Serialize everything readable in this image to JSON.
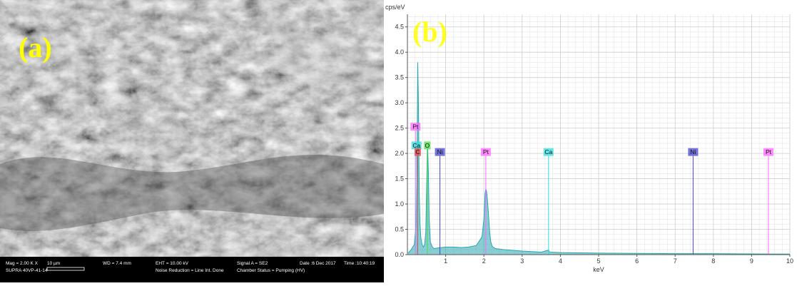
{
  "panel_a": {
    "label": "(a)",
    "info_bar": {
      "row1": [
        "Mag = 2.00 K X",
        "10 µm",
        "WD = 7.4 mm",
        "EHT = 10.00 kV",
        "Signal A = SE2",
        "Date :6 Dec 2017",
        "Time :10:40:19"
      ],
      "row2": [
        "SUPRA 40VP-41-14",
        "Noise Reduction = Line Int. Done",
        "Chamber Status = Pumping (HV)"
      ]
    }
  },
  "chart_data": {
    "type": "line",
    "panel_label": "(b)",
    "ylabel": "cps/eV",
    "xlabel": "keV",
    "xlim": [
      0,
      10
    ],
    "ylim": [
      0,
      4.75
    ],
    "xticks": [
      1,
      2,
      3,
      4,
      5,
      6,
      7,
      8,
      9,
      10
    ],
    "yticks": [
      0.0,
      0.5,
      1.0,
      1.5,
      2.0,
      2.5,
      3.0,
      3.5,
      4.0,
      4.5
    ],
    "grid": true,
    "series": [
      {
        "x": [
          0.02,
          0.1,
          0.18,
          0.22,
          0.25,
          0.27,
          0.29,
          0.31,
          0.33,
          0.35,
          0.38,
          0.42,
          0.45,
          0.48,
          0.5,
          0.52,
          0.53,
          0.55,
          0.57,
          0.6,
          0.65,
          0.7,
          0.78,
          0.85,
          0.9,
          1.0,
          1.2,
          1.4,
          1.6,
          1.8,
          1.95,
          2.0,
          2.03,
          2.05,
          2.07,
          2.09,
          2.12,
          2.15,
          2.18,
          2.22,
          2.3,
          2.5,
          3.0,
          3.5,
          3.69,
          3.72,
          4.0,
          5.0,
          6.0,
          7.0,
          8.0,
          9.0,
          10.0
        ],
        "y": [
          0.03,
          0.1,
          0.2,
          0.55,
          1.7,
          3.8,
          2.9,
          1.2,
          0.6,
          0.35,
          0.2,
          0.15,
          0.2,
          0.45,
          1.2,
          2.0,
          2.1,
          1.6,
          0.7,
          0.25,
          0.15,
          0.12,
          0.13,
          0.14,
          0.14,
          0.15,
          0.15,
          0.14,
          0.15,
          0.18,
          0.35,
          0.7,
          1.2,
          1.3,
          1.25,
          1.1,
          0.8,
          0.45,
          0.25,
          0.16,
          0.12,
          0.1,
          0.07,
          0.05,
          0.09,
          0.05,
          0.04,
          0.03,
          0.025,
          0.02,
          0.02,
          0.015,
          0.01
        ],
        "color": "#2aa6b0"
      }
    ],
    "element_markers": [
      {
        "element": "Pt",
        "energy": 0.21,
        "height": 2.45,
        "color": "#ff66ff"
      },
      {
        "element": "Ca",
        "energy": 0.24,
        "height": 2.08,
        "color": "#33dddd"
      },
      {
        "element": "C",
        "energy": 0.27,
        "height": 1.95,
        "color": "#ee4444"
      },
      {
        "element": "O",
        "energy": 0.52,
        "height": 2.08,
        "color": "#44dd44"
      },
      {
        "element": "Ni",
        "energy": 0.85,
        "height": 1.95,
        "color": "#4444cc"
      },
      {
        "element": "Pt",
        "energy": 2.05,
        "height": 1.95,
        "color": "#ff66ff"
      },
      {
        "element": "Ca",
        "energy": 3.69,
        "height": 1.95,
        "color": "#33dddd"
      },
      {
        "element": "Ni",
        "energy": 7.47,
        "height": 1.95,
        "color": "#4444cc"
      },
      {
        "element": "Pt",
        "energy": 9.44,
        "height": 1.95,
        "color": "#ff66ff"
      }
    ]
  }
}
